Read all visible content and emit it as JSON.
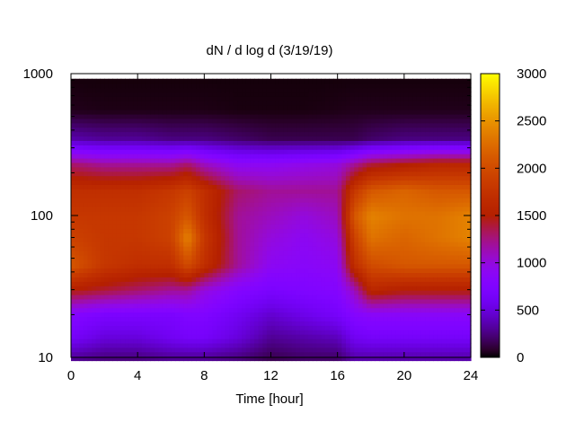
{
  "chart_data": {
    "type": "heatmap",
    "title": "dN / d log d (3/19/19)",
    "xlabel": "Time [hour]",
    "ylabel": "",
    "x_ticks": [
      0,
      4,
      8,
      12,
      16,
      20,
      24
    ],
    "y_ticks": [
      10,
      100,
      1000
    ],
    "y_scale": "log",
    "xlim": [
      0,
      24
    ],
    "ylim": [
      10,
      1000
    ],
    "data_x_extent": [
      0,
      24
    ],
    "data_y_extent": [
      9.5,
      920
    ],
    "colorbar": {
      "range": [
        0,
        3000
      ],
      "ticks": [
        0,
        500,
        1000,
        1500,
        2000,
        2500,
        3000
      ],
      "palette": "gnuplot rgbformulae 7,5,15"
    },
    "y_grid": [
      10,
      14,
      20,
      30,
      45,
      70,
      100,
      150,
      230,
      350,
      550,
      920
    ],
    "x_grid": [
      0,
      2,
      4,
      6,
      7,
      8,
      10,
      12,
      14,
      16,
      17,
      18,
      20,
      22,
      24
    ],
    "z": [
      [
        300,
        250,
        250,
        300,
        300,
        300,
        250,
        150,
        200,
        200,
        350,
        350,
        350,
        350,
        350
      ],
      [
        650,
        500,
        500,
        600,
        650,
        650,
        500,
        300,
        350,
        400,
        600,
        650,
        650,
        650,
        650
      ],
      [
        800,
        700,
        700,
        700,
        750,
        750,
        600,
        450,
        550,
        650,
        800,
        850,
        850,
        850,
        850
      ],
      [
        1500,
        1400,
        1300,
        1200,
        1200,
        1000,
        800,
        700,
        750,
        800,
        1100,
        1600,
        1500,
        1500,
        1500
      ],
      [
        2100,
        1800,
        1700,
        1700,
        2000,
        1700,
        1200,
        900,
        850,
        900,
        1700,
        2000,
        2100,
        2100,
        2100
      ],
      [
        1900,
        1800,
        1800,
        1900,
        2400,
        1800,
        1200,
        1000,
        900,
        1000,
        1900,
        2300,
        2200,
        2300,
        2400
      ],
      [
        1800,
        1800,
        1800,
        1900,
        2100,
        1700,
        1200,
        1100,
        1000,
        1100,
        2100,
        2400,
        2300,
        2300,
        2400
      ],
      [
        1700,
        1700,
        1700,
        1800,
        1900,
        1700,
        1300,
        1200,
        1200,
        1200,
        1800,
        2100,
        2200,
        2100,
        2100
      ],
      [
        1300,
        1200,
        1200,
        1200,
        1300,
        1100,
        900,
        900,
        950,
        1000,
        1200,
        1400,
        1500,
        1600,
        1600
      ],
      [
        350,
        300,
        300,
        250,
        250,
        250,
        200,
        150,
        150,
        150,
        150,
        200,
        250,
        250,
        250
      ],
      [
        50,
        40,
        40,
        40,
        40,
        40,
        30,
        30,
        30,
        40,
        50,
        50,
        50,
        50,
        50
      ],
      [
        20,
        20,
        20,
        20,
        20,
        20,
        20,
        20,
        20,
        20,
        20,
        20,
        20,
        20,
        20
      ]
    ]
  }
}
